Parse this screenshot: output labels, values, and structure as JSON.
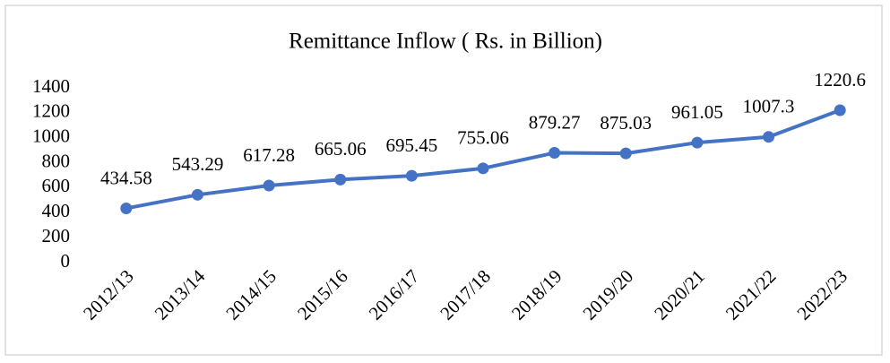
{
  "chart_data": {
    "type": "line",
    "title": "Remittance Inflow ( Rs. in Billion)",
    "categories": [
      "2012/13",
      "2013/14",
      "2014/15",
      "2015/16",
      "2016/17",
      "2017/18",
      "2018/19",
      "2019/20",
      "2020/21",
      "2021/22",
      "2022/23"
    ],
    "series": [
      {
        "name": "Remittance Inflow",
        "color": "#4472c4",
        "values": [
          434.58,
          543.29,
          617.28,
          665.06,
          695.45,
          755.06,
          879.27,
          875.03,
          961.05,
          1007.3,
          1220.6
        ]
      }
    ],
    "ylim": [
      0,
      1400
    ],
    "yticks": [
      0,
      200,
      400,
      600,
      800,
      1000,
      1200,
      1400
    ],
    "grid": false,
    "legend": false
  }
}
